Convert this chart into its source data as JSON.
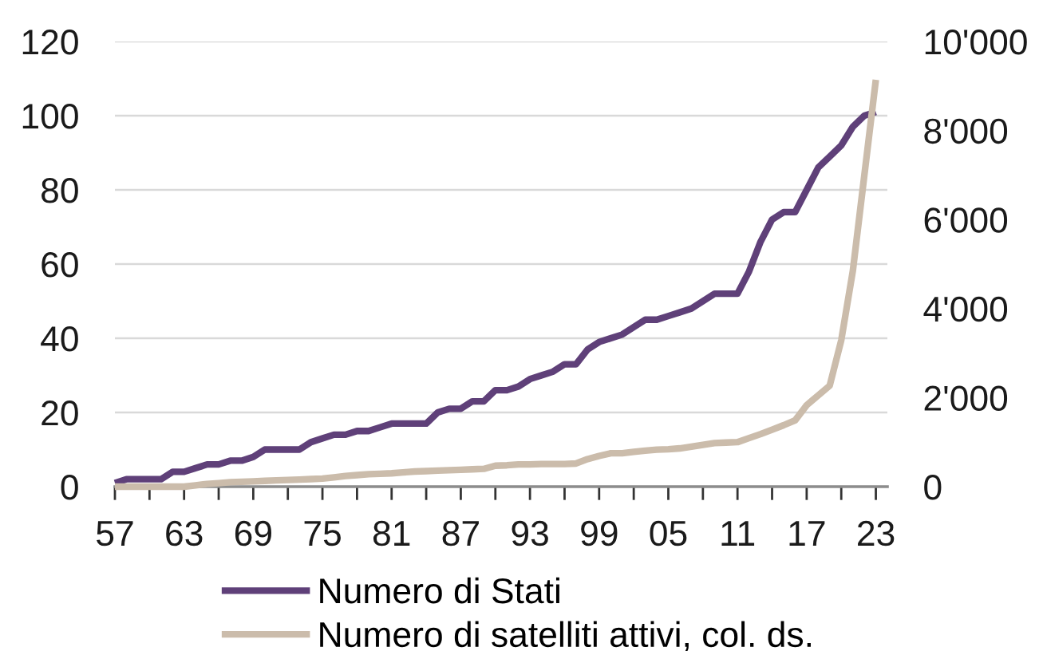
{
  "chart_data": {
    "type": "line",
    "x": [
      1957,
      1958,
      1959,
      1960,
      1961,
      1962,
      1963,
      1964,
      1965,
      1966,
      1967,
      1968,
      1969,
      1970,
      1971,
      1972,
      1973,
      1974,
      1975,
      1976,
      1977,
      1978,
      1979,
      1980,
      1981,
      1982,
      1983,
      1984,
      1985,
      1986,
      1987,
      1988,
      1989,
      1990,
      1991,
      1992,
      1993,
      1994,
      1995,
      1996,
      1997,
      1998,
      1999,
      2000,
      2001,
      2002,
      2003,
      2004,
      2005,
      2006,
      2007,
      2008,
      2009,
      2010,
      2011,
      2012,
      2013,
      2014,
      2015,
      2016,
      2017,
      2018,
      2019,
      2020,
      2021,
      2022,
      2023
    ],
    "series": [
      {
        "name": "Numero di Stati",
        "color": "#5f4079",
        "values": [
          1,
          2,
          2,
          2,
          2,
          4,
          4,
          5,
          6,
          6,
          7,
          7,
          8,
          10,
          10,
          10,
          10,
          12,
          13,
          14,
          14,
          15,
          15,
          16,
          17,
          17,
          17,
          17,
          20,
          21,
          21,
          23,
          23,
          26,
          26,
          27,
          29,
          30,
          31,
          33,
          33,
          37,
          39,
          40,
          41,
          43,
          45,
          45,
          46,
          47,
          48,
          50,
          52,
          52,
          52,
          58,
          66,
          72,
          74,
          74,
          80,
          86,
          89,
          92,
          97,
          100,
          101
        ]
      },
      {
        "name": "Numero di satelliti attivi, col. ds.",
        "color": "#cbbcab",
        "axis": "y2",
        "values": [
          0,
          0,
          0,
          0,
          0,
          0,
          0,
          30,
          60,
          80,
          100,
          110,
          120,
          130,
          140,
          150,
          160,
          170,
          180,
          210,
          240,
          260,
          280,
          290,
          300,
          320,
          340,
          350,
          360,
          370,
          380,
          390,
          400,
          470,
          480,
          500,
          500,
          510,
          510,
          510,
          520,
          620,
          690,
          750,
          750,
          780,
          810,
          830,
          840,
          860,
          900,
          940,
          980,
          990,
          1000,
          1090,
          1180,
          1280,
          1380,
          1490,
          1830,
          2050,
          2270,
          3290,
          4840,
          6990,
          9140
        ]
      }
    ],
    "xlim": [
      1957,
      2024
    ],
    "xticks": [
      {
        "value": 1957,
        "label": "57"
      },
      {
        "value": 1960,
        "label": null
      },
      {
        "value": 1963,
        "label": "63"
      },
      {
        "value": 1966,
        "label": null
      },
      {
        "value": 1969,
        "label": "69"
      },
      {
        "value": 1972,
        "label": null
      },
      {
        "value": 1975,
        "label": "75"
      },
      {
        "value": 1978,
        "label": null
      },
      {
        "value": 1981,
        "label": "81"
      },
      {
        "value": 1984,
        "label": null
      },
      {
        "value": 1987,
        "label": "87"
      },
      {
        "value": 1990,
        "label": null
      },
      {
        "value": 1993,
        "label": "93"
      },
      {
        "value": 1996,
        "label": null
      },
      {
        "value": 1999,
        "label": "99"
      },
      {
        "value": 2002,
        "label": null
      },
      {
        "value": 2005,
        "label": "05"
      },
      {
        "value": 2008,
        "label": null
      },
      {
        "value": 2011,
        "label": "11"
      },
      {
        "value": 2014,
        "label": null
      },
      {
        "value": 2017,
        "label": "17"
      },
      {
        "value": 2020,
        "label": null
      },
      {
        "value": 2023,
        "label": "23"
      }
    ],
    "ylim": [
      0,
      120
    ],
    "yticks": [
      0,
      20,
      40,
      60,
      80,
      100,
      120
    ],
    "y2lim": [
      0,
      10000
    ],
    "y2ticks": [
      0,
      {
        "value": 2000,
        "label": "2'000"
      },
      {
        "value": 4000,
        "label": "4'000"
      },
      {
        "value": 6000,
        "label": "6'000"
      },
      {
        "value": 8000,
        "label": "8'000"
      },
      {
        "value": 10000,
        "label": "10'000"
      }
    ],
    "grid": "y",
    "legend": "bottom"
  }
}
